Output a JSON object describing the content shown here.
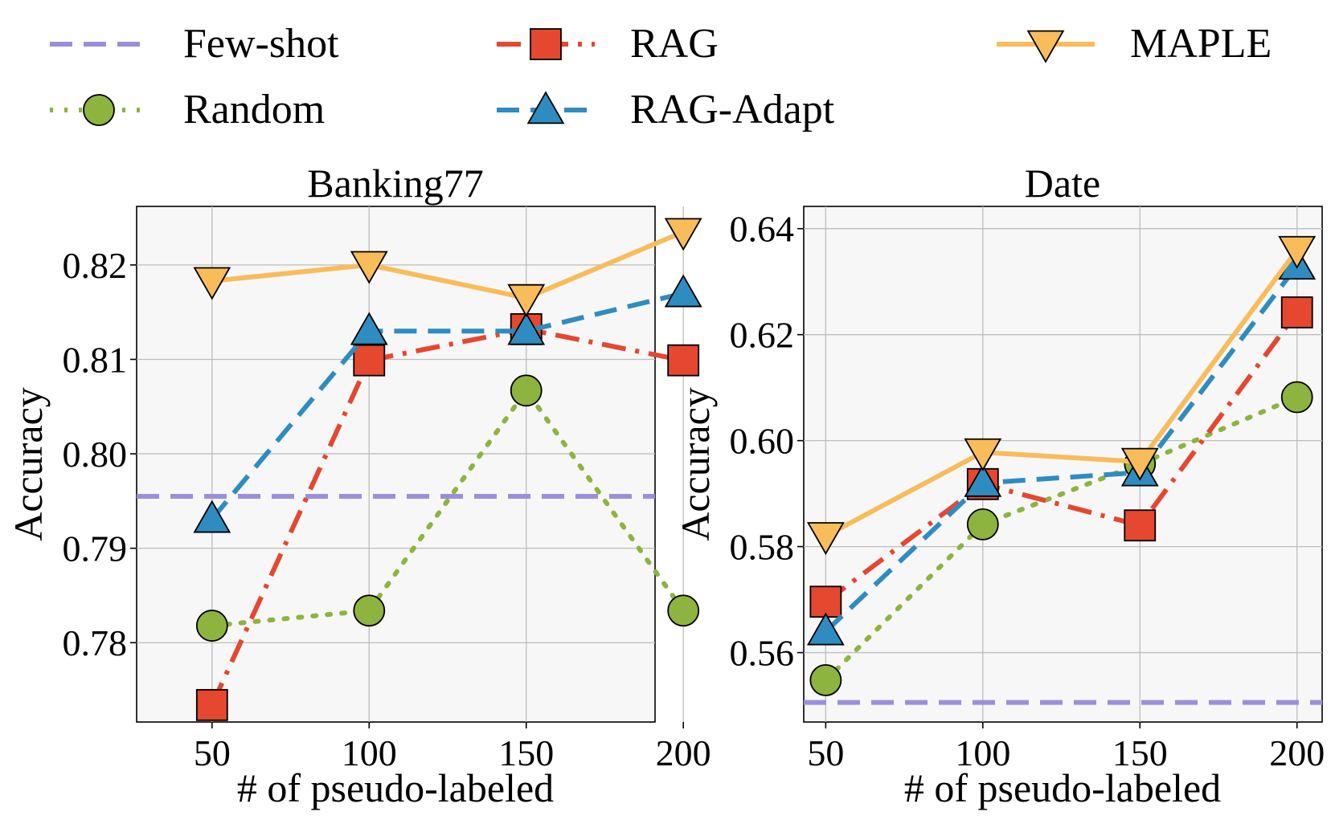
{
  "legend": {
    "items": [
      {
        "label": "Few-shot",
        "series": "fewshot"
      },
      {
        "label": "Random",
        "series": "random"
      },
      {
        "label": "RAG",
        "series": "rag"
      },
      {
        "label": "RAG-Adapt",
        "series": "ragadapt"
      },
      {
        "label": "MAPLE",
        "series": "maple"
      }
    ]
  },
  "styles": {
    "fewshot": {
      "color": "#9b8fdc",
      "dash": "28 14",
      "marker": "none",
      "marker_fill": "none"
    },
    "random": {
      "color": "#8db43f",
      "dash": "4 14",
      "marker": "circle",
      "marker_fill": "#8db43f"
    },
    "rag": {
      "color": "#e5472f",
      "dash": "30 12 5 12",
      "marker": "square",
      "marker_fill": "#e5472f"
    },
    "ragadapt": {
      "color": "#2f8cc0",
      "dash": "28 14",
      "marker": "triangle",
      "marker_fill": "#2f8cc0"
    },
    "maple": {
      "color": "#f9bc5a",
      "dash": "",
      "marker": "triangle-down",
      "marker_fill": "#f9bc5a"
    }
  },
  "chart_data": [
    {
      "type": "line",
      "title": "Banking77",
      "xlabel": "# of pseudo-labeled",
      "ylabel": "Accuracy",
      "x": [
        50,
        100,
        150,
        200
      ],
      "xlim": [
        26,
        191
      ],
      "ylim": [
        0.7716,
        0.8262
      ],
      "xticks": [
        50,
        100,
        150,
        200
      ],
      "xtick_labels": [
        "50",
        "100",
        "150",
        "200"
      ],
      "yticks": [
        0.78,
        0.79,
        0.8,
        0.81,
        0.82
      ],
      "ytick_labels": [
        "0.78",
        "0.79",
        "0.80",
        "0.81",
        "0.82"
      ],
      "grid": true,
      "fewshot": 0.7955,
      "series": [
        {
          "name": "Random",
          "key": "random",
          "values": [
            0.7818,
            0.7834,
            0.8067,
            0.7834
          ]
        },
        {
          "name": "RAG",
          "key": "rag",
          "values": [
            0.7734,
            0.8099,
            0.8132,
            0.8099
          ]
        },
        {
          "name": "RAG-Adapt",
          "key": "ragadapt",
          "values": [
            0.7931,
            0.813,
            0.813,
            0.817
          ]
        },
        {
          "name": "MAPLE",
          "key": "maple",
          "values": [
            0.8183,
            0.82,
            0.8165,
            0.8235
          ]
        }
      ]
    },
    {
      "type": "line",
      "title": "Date",
      "xlabel": "# of pseudo-labeled",
      "ylabel": "Accuracy",
      "x": [
        50,
        100,
        150,
        200
      ],
      "xlim": [
        43,
        208
      ],
      "ylim": [
        0.5469,
        0.6442
      ],
      "xticks": [
        50,
        100,
        150,
        200
      ],
      "xtick_labels": [
        "50",
        "100",
        "150",
        "200"
      ],
      "yticks": [
        0.56,
        0.58,
        0.6,
        0.62,
        0.64
      ],
      "ytick_labels": [
        "0.56",
        "0.58",
        "0.60",
        "0.62",
        "0.64"
      ],
      "grid": true,
      "fewshot": 0.5506,
      "series": [
        {
          "name": "Random",
          "key": "random",
          "values": [
            0.5548,
            0.5842,
            0.5956,
            0.6082
          ]
        },
        {
          "name": "RAG",
          "key": "rag",
          "values": [
            0.5696,
            0.5918,
            0.584,
            0.6242
          ]
        },
        {
          "name": "RAG-Adapt",
          "key": "ragadapt",
          "values": [
            0.564,
            0.592,
            0.594,
            0.633
          ]
        },
        {
          "name": "MAPLE",
          "key": "maple",
          "values": [
            0.582,
            0.5978,
            0.596,
            0.636
          ]
        }
      ]
    }
  ]
}
